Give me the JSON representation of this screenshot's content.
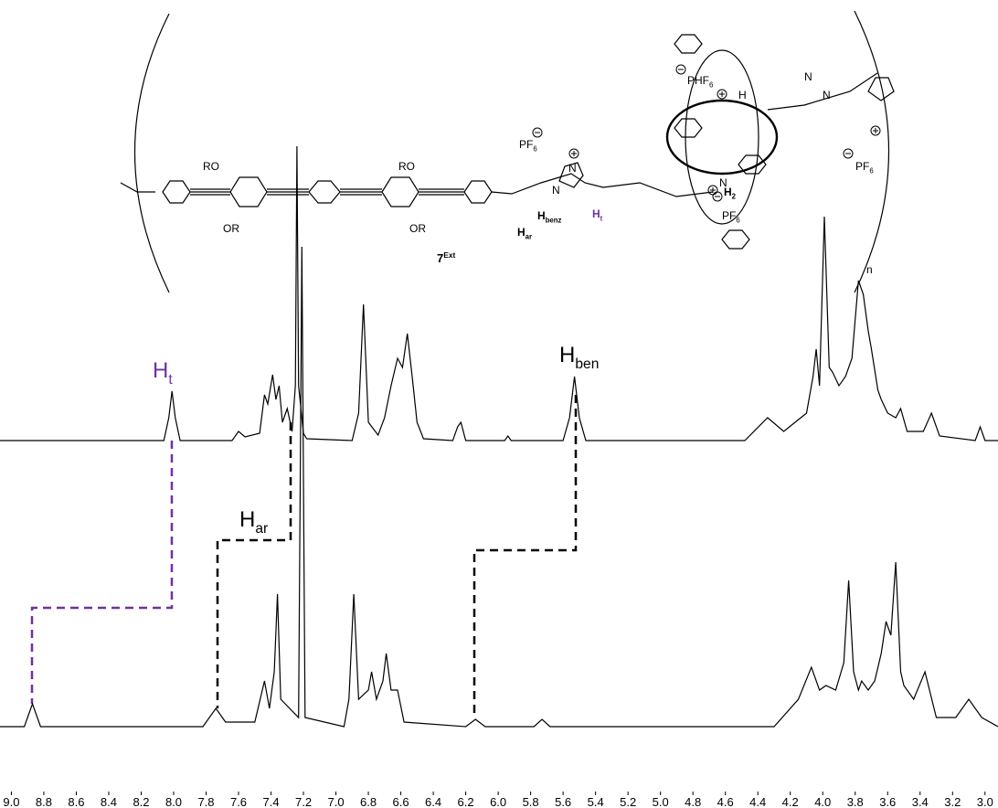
{
  "chart_data": [
    {
      "type": "line",
      "color": "#000000",
      "xlim": [
        9.07,
        2.92
      ],
      "ylim": [
        0,
        330
      ],
      "x": [
        9.07,
        8.06,
        8.03,
        8.01,
        7.99,
        7.96,
        7.64,
        7.6,
        7.56,
        7.47,
        7.44,
        7.42,
        7.39,
        7.37,
        7.35,
        7.33,
        7.3,
        7.27,
        7.25,
        7.24,
        7.23,
        7.2,
        7.18,
        6.9,
        6.86,
        6.83,
        6.8,
        6.74,
        6.7,
        6.66,
        6.62,
        6.59,
        6.56,
        6.53,
        6.5,
        6.46,
        6.28,
        6.25,
        6.23,
        6.2,
        5.96,
        5.94,
        5.92,
        5.6,
        5.56,
        5.53,
        5.5,
        5.46,
        4.48,
        4.34,
        4.24,
        4.17,
        4.1,
        4.06,
        4.04,
        4.02,
        3.99,
        3.96,
        3.94,
        3.9,
        3.86,
        3.82,
        3.78,
        3.75,
        3.72,
        3.7,
        3.66,
        3.64,
        3.6,
        3.55,
        3.52,
        3.48,
        3.38,
        3.33,
        3.28,
        3.06,
        3.03,
        3.0,
        2.92
      ],
      "values": [
        0,
        0,
        25,
        54,
        25,
        0,
        0,
        10,
        4,
        8,
        50,
        40,
        72,
        45,
        60,
        20,
        35,
        10,
        60,
        322,
        60,
        8,
        2,
        0,
        30,
        149,
        20,
        6,
        25,
        60,
        90,
        80,
        117,
        70,
        20,
        2,
        0,
        15,
        20,
        0,
        0,
        5,
        0,
        0,
        25,
        70,
        25,
        0,
        0,
        25,
        10,
        20,
        30,
        70,
        100,
        60,
        245,
        80,
        75,
        60,
        70,
        90,
        175,
        160,
        120,
        100,
        55,
        45,
        30,
        25,
        35,
        10,
        10,
        30,
        5,
        0,
        15,
        0,
        0
      ],
      "annotations": [
        {
          "text": "H",
          "sub": "t",
          "color": "#7030a0"
        },
        {
          "text": "H",
          "sub": "ben",
          "color": "#000000"
        }
      ],
      "structure_labels": [
        {
          "text": "RO"
        },
        {
          "text": "OR"
        },
        {
          "text": "RO"
        },
        {
          "text": "OR"
        },
        {
          "text": "H",
          "sub": "ar"
        },
        {
          "text": "H",
          "sub": "benz"
        },
        {
          "text": "H",
          "sub": "t"
        },
        {
          "text": "PF",
          "sub": "6"
        },
        {
          "text": "PHF",
          "sub": "6"
        },
        {
          "text": "PF",
          "sub": "6"
        },
        {
          "text": "PF",
          "sub": "6"
        },
        {
          "text": "7",
          "sup": "Ext"
        },
        {
          "text": "n"
        },
        {
          "text": "N"
        },
        {
          "text": "N"
        },
        {
          "text": "N"
        },
        {
          "text": "N"
        },
        {
          "text": "H"
        },
        {
          "text": "N"
        },
        {
          "text": "H",
          "sub": "2"
        }
      ]
    },
    {
      "type": "line",
      "color": "#000000",
      "xlim": [
        9.07,
        2.92
      ],
      "ylim": [
        0,
        650
      ],
      "x": [
        9.07,
        8.92,
        8.87,
        8.82,
        7.82,
        7.74,
        7.68,
        7.5,
        7.44,
        7.41,
        7.38,
        7.36,
        7.34,
        7.23,
        7.21,
        7.19,
        6.95,
        6.92,
        6.89,
        6.86,
        6.8,
        6.78,
        6.75,
        6.71,
        6.69,
        6.66,
        6.62,
        6.58,
        6.2,
        6.14,
        6.08,
        5.78,
        5.73,
        5.68,
        4.3,
        4.15,
        4.07,
        4.02,
        3.98,
        3.92,
        3.87,
        3.84,
        3.81,
        3.78,
        3.76,
        3.72,
        3.68,
        3.64,
        3.61,
        3.58,
        3.55,
        3.52,
        3.5,
        3.44,
        3.37,
        3.3,
        3.18,
        3.1,
        3.02,
        2.92
      ],
      "values": [
        0,
        0,
        25,
        0,
        0,
        20,
        5,
        5,
        50,
        20,
        60,
        145,
        30,
        10,
        525,
        10,
        0,
        30,
        145,
        30,
        40,
        60,
        30,
        50,
        80,
        40,
        40,
        5,
        0,
        8,
        0,
        0,
        8,
        0,
        0,
        30,
        65,
        40,
        45,
        40,
        70,
        160,
        60,
        40,
        50,
        40,
        50,
        80,
        115,
        100,
        180,
        60,
        45,
        30,
        60,
        10,
        10,
        30,
        10,
        0
      ],
      "xticks": [
        {
          "value": 9,
          "label": "9.0"
        },
        8.8,
        8.6,
        8.4,
        8.2,
        {
          "value": 8,
          "label": "8.0"
        },
        7.8,
        7.6,
        7.4,
        7.2,
        {
          "value": 7,
          "label": "7.0"
        },
        6.8,
        6.6,
        6.4,
        6.2,
        {
          "value": 6,
          "label": "6.0"
        },
        5.8,
        5.6,
        5.4,
        5.2,
        {
          "value": 5,
          "label": "5.0"
        },
        4.8,
        4.6,
        4.4,
        4.2,
        {
          "value": 4,
          "label": "4.0"
        },
        3.8,
        3.6,
        3.4,
        3.2,
        {
          "value": 3,
          "label": "3.0"
        }
      ],
      "annotations": [
        {
          "text": "H",
          "sub": "ar",
          "color": "#000000"
        }
      ]
    }
  ]
}
